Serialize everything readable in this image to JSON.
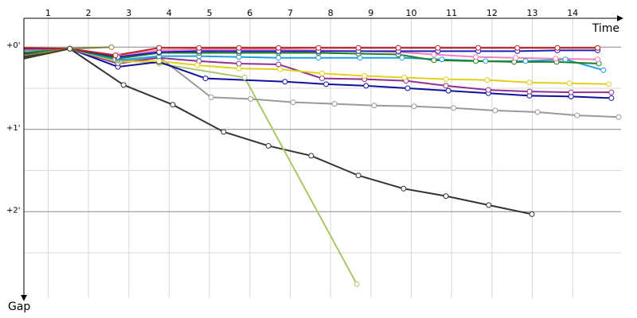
{
  "chart_data": {
    "type": "line",
    "x_title": "Time",
    "y_title": "Gap",
    "xlim": [
      0.4,
      15.2
    ],
    "xticks": [
      1,
      2,
      3,
      4,
      5,
      6,
      7,
      8,
      9,
      10,
      11,
      12,
      13,
      14
    ],
    "ylim": [
      -0.35,
      3.05
    ],
    "yticks": [
      {
        "value": 0,
        "label": "+0'"
      },
      {
        "value": 1,
        "label": "+1'"
      },
      {
        "value": 2,
        "label": "+2'"
      }
    ],
    "minor_yticks": [
      0.5,
      1.5,
      2.5
    ],
    "y_inverted": true,
    "grid": true,
    "series": [
      {
        "color": "#333333",
        "x": [
          0.4,
          1.54,
          2.87,
          4.09,
          5.35,
          6.46,
          7.52,
          8.69,
          9.81,
          10.86,
          11.92,
          12.99
        ],
        "values": [
          0.12,
          0.02,
          0.46,
          0.7,
          1.03,
          1.2,
          1.32,
          1.56,
          1.72,
          1.81,
          1.92,
          2.03
        ]
      },
      {
        "color": "#a8c868",
        "x": [
          0.4,
          1.54,
          2.67,
          3.75,
          5.87,
          8.65
        ],
        "values": [
          0.05,
          0.02,
          0.15,
          0.2,
          0.37,
          2.88
        ]
      },
      {
        "color": "#999999",
        "x": [
          0.4,
          1.54,
          2.77,
          3.75,
          5.04,
          6.02,
          7.07,
          8.1,
          9.08,
          10.07,
          11.05,
          12.08,
          13.13,
          14.11,
          15.14
        ],
        "values": [
          0.05,
          0.02,
          0.18,
          0.12,
          0.61,
          0.63,
          0.67,
          0.69,
          0.71,
          0.72,
          0.74,
          0.77,
          0.79,
          0.83,
          0.85
        ]
      },
      {
        "color": "#1010a0",
        "x": [
          0.4,
          1.54,
          2.73,
          3.75,
          4.9,
          6.87,
          7.89,
          8.88,
          9.91,
          10.92,
          11.91,
          12.93,
          13.96,
          14.96
        ],
        "values": [
          0.08,
          0.02,
          0.24,
          0.18,
          0.38,
          0.42,
          0.45,
          0.47,
          0.5,
          0.53,
          0.56,
          0.59,
          0.6,
          0.62
        ]
      },
      {
        "color": "#903090",
        "x": [
          0.4,
          1.54,
          2.73,
          3.75,
          4.74,
          5.73,
          6.71,
          7.79,
          8.84,
          9.87,
          10.86,
          11.91,
          12.93,
          13.96,
          14.96
        ],
        "values": [
          0.06,
          0.02,
          0.2,
          0.13,
          0.17,
          0.2,
          0.21,
          0.38,
          0.39,
          0.41,
          0.47,
          0.52,
          0.54,
          0.55,
          0.55
        ]
      },
      {
        "color": "#e0d020",
        "x": [
          0.4,
          1.54,
          2.73,
          3.75,
          4.7,
          5.73,
          6.75,
          7.79,
          8.84,
          9.83,
          10.86,
          11.88,
          12.93,
          13.92,
          14.9
        ],
        "values": [
          0.05,
          0.02,
          0.18,
          0.17,
          0.22,
          0.26,
          0.27,
          0.32,
          0.35,
          0.37,
          0.39,
          0.4,
          0.43,
          0.44,
          0.45
        ]
      },
      {
        "color": "#20a0e0",
        "x": [
          0.4,
          1.54,
          2.73,
          3.75,
          4.74,
          5.73,
          6.71,
          7.7,
          8.73,
          9.77,
          10.76,
          11.84,
          12.83,
          13.82,
          14.76
        ],
        "values": [
          0.04,
          0.02,
          0.16,
          0.11,
          0.11,
          0.12,
          0.13,
          0.13,
          0.13,
          0.13,
          0.15,
          0.17,
          0.17,
          0.15,
          0.28
        ]
      },
      {
        "color": "#208020",
        "x": [
          0.4,
          1.54,
          2.73,
          3.75,
          4.74,
          5.73,
          6.71,
          7.7,
          8.69,
          9.68,
          10.56,
          11.6,
          12.55,
          13.6,
          14.65
        ],
        "values": [
          0.07,
          0.02,
          0.14,
          0.07,
          0.07,
          0.07,
          0.07,
          0.07,
          0.08,
          0.09,
          0.16,
          0.17,
          0.18,
          0.18,
          0.2
        ]
      },
      {
        "color": "#f080c0",
        "x": [
          0.4,
          1.54,
          2.73,
          3.75,
          4.74,
          5.73,
          6.71,
          7.7,
          8.69,
          9.68,
          10.56,
          11.6,
          12.59,
          13.58,
          14.62
        ],
        "values": [
          0.03,
          0.02,
          0.1,
          0.04,
          0.03,
          0.03,
          0.03,
          0.04,
          0.05,
          0.06,
          0.09,
          0.12,
          0.13,
          0.14,
          0.15
        ]
      },
      {
        "color": "#2020c0",
        "x": [
          0.4,
          1.54,
          2.73,
          3.75,
          4.74,
          5.73,
          6.71,
          7.7,
          8.69,
          9.68,
          10.66,
          11.66,
          12.63,
          13.62,
          14.62
        ],
        "values": [
          0.02,
          0.02,
          0.12,
          0.06,
          0.05,
          0.05,
          0.05,
          0.05,
          0.05,
          0.05,
          0.05,
          0.05,
          0.05,
          0.04,
          0.04
        ]
      },
      {
        "color": "#c02020",
        "x": [
          0.4,
          1.54,
          2.67,
          3.75,
          4.74,
          5.73,
          6.71,
          7.7,
          8.69,
          9.68,
          10.66,
          11.66,
          12.63,
          13.62,
          14.62
        ],
        "values": [
          0.01,
          0.02,
          0.1,
          0.01,
          0.01,
          0.01,
          0.01,
          0.01,
          0.01,
          0.01,
          0.01,
          0.01,
          0.01,
          0.01,
          0.01
        ]
      },
      {
        "color": "#808040",
        "x": [
          0.4,
          1.54,
          2.57
        ],
        "values": [
          0.1,
          0.02,
          0.0
        ]
      },
      {
        "color": "#404020",
        "x": [
          0.4,
          1.54
        ],
        "values": [
          0.14,
          0.02
        ]
      }
    ]
  }
}
